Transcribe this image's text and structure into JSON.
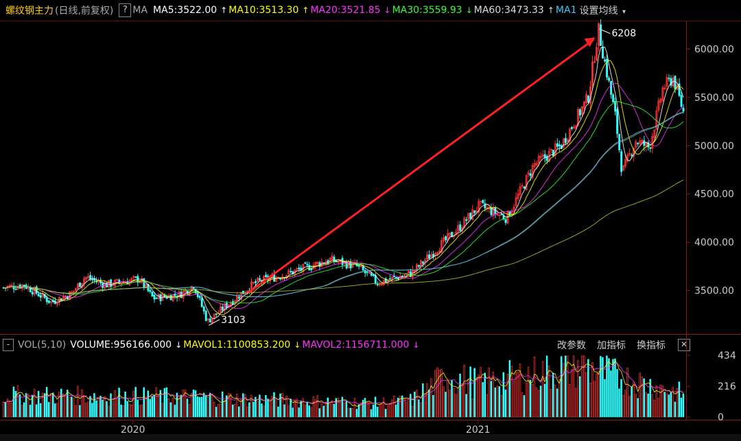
{
  "header": {
    "symbol_title": "螺纹钢主力",
    "symbol_sub": "(日线,前复权)",
    "help_label": "?",
    "ma_label": "MA",
    "ma_items": [
      {
        "text": "MA5:3522.00",
        "arrow": "↑",
        "color": "#ffffff"
      },
      {
        "text": "MA10:3513.30",
        "arrow": "↑",
        "color": "#ffff00"
      },
      {
        "text": "MA20:3521.85",
        "arrow": "↓",
        "color": "#ff33ff"
      },
      {
        "text": "MA30:3559.93",
        "arrow": "↓",
        "color": "#33ff33"
      },
      {
        "text": "MA60:3473.33",
        "arrow": "↑",
        "color": "#dddddd"
      },
      {
        "text": "MA1",
        "arrow": "",
        "color": "#33ccff"
      }
    ],
    "settings_label": "设置均线",
    "settings_arrow": "▾"
  },
  "volume_header": {
    "label": "VOL(5,10)",
    "items": [
      {
        "text": "VOLUME:956166.000",
        "arrow": "↓",
        "color": "#ffffff"
      },
      {
        "text": "MAVOL1:1100853.200",
        "arrow": "↓",
        "color": "#ffff00"
      },
      {
        "text": "MAVOL2:1156711.000",
        "arrow": "↓",
        "color": "#ff33ff"
      }
    ],
    "tools": [
      "改参数",
      "加指标",
      "换指标"
    ],
    "close_label": "✕"
  },
  "chart_data": {
    "type": "candlestick",
    "y_ticks": [
      "6000.00",
      "5500.00",
      "5000.00",
      "4500.00",
      "4000.00",
      "3500.00"
    ],
    "y_tick_values": [
      6000,
      5500,
      5000,
      4500,
      4000,
      3500
    ],
    "ylim": [
      3050,
      6280
    ],
    "x_labels": [
      "2020",
      "2021"
    ],
    "annotations": {
      "high": "6208",
      "low": "3103"
    },
    "price_anchors": [
      {
        "t": 0,
        "p": 3530
      },
      {
        "t": 0.03,
        "p": 3560
      },
      {
        "t": 0.07,
        "p": 3380
      },
      {
        "t": 0.1,
        "p": 3470
      },
      {
        "t": 0.12,
        "p": 3640
      },
      {
        "t": 0.15,
        "p": 3560
      },
      {
        "t": 0.2,
        "p": 3620
      },
      {
        "t": 0.22,
        "p": 3420
      },
      {
        "t": 0.26,
        "p": 3460
      },
      {
        "t": 0.28,
        "p": 3560
      },
      {
        "t": 0.3,
        "p": 3180
      },
      {
        "t": 0.33,
        "p": 3360
      },
      {
        "t": 0.37,
        "p": 3580
      },
      {
        "t": 0.42,
        "p": 3680
      },
      {
        "t": 0.48,
        "p": 3820
      },
      {
        "t": 0.52,
        "p": 3750
      },
      {
        "t": 0.55,
        "p": 3580
      },
      {
        "t": 0.6,
        "p": 3680
      },
      {
        "t": 0.64,
        "p": 3950
      },
      {
        "t": 0.67,
        "p": 4150
      },
      {
        "t": 0.7,
        "p": 4380
      },
      {
        "t": 0.74,
        "p": 4250
      },
      {
        "t": 0.78,
        "p": 4800
      },
      {
        "t": 0.82,
        "p": 5000
      },
      {
        "t": 0.86,
        "p": 5500
      },
      {
        "t": 0.875,
        "p": 6208
      },
      {
        "t": 0.9,
        "p": 5300
      },
      {
        "t": 0.91,
        "p": 4720
      },
      {
        "t": 0.93,
        "p": 5050
      },
      {
        "t": 0.95,
        "p": 4980
      },
      {
        "t": 0.97,
        "p": 5600
      },
      {
        "t": 0.985,
        "p": 5700
      },
      {
        "t": 1,
        "p": 5350
      }
    ],
    "volume_ticks": [
      "434",
      "216",
      "0"
    ],
    "volume_tick_values": [
      434,
      216,
      0
    ],
    "volume_anchors": [
      {
        "t": 0,
        "v": 160
      },
      {
        "t": 0.25,
        "v": 150
      },
      {
        "t": 0.55,
        "v": 100
      },
      {
        "t": 0.6,
        "v": 120
      },
      {
        "t": 0.65,
        "v": 300
      },
      {
        "t": 0.7,
        "v": 250
      },
      {
        "t": 0.8,
        "v": 330
      },
      {
        "t": 0.85,
        "v": 380
      },
      {
        "t": 0.9,
        "v": 300
      },
      {
        "t": 1,
        "v": 170
      }
    ],
    "colors": {
      "up": "#ff3333",
      "down": "#33ffff",
      "trend_arrow": "#ff2222"
    }
  }
}
